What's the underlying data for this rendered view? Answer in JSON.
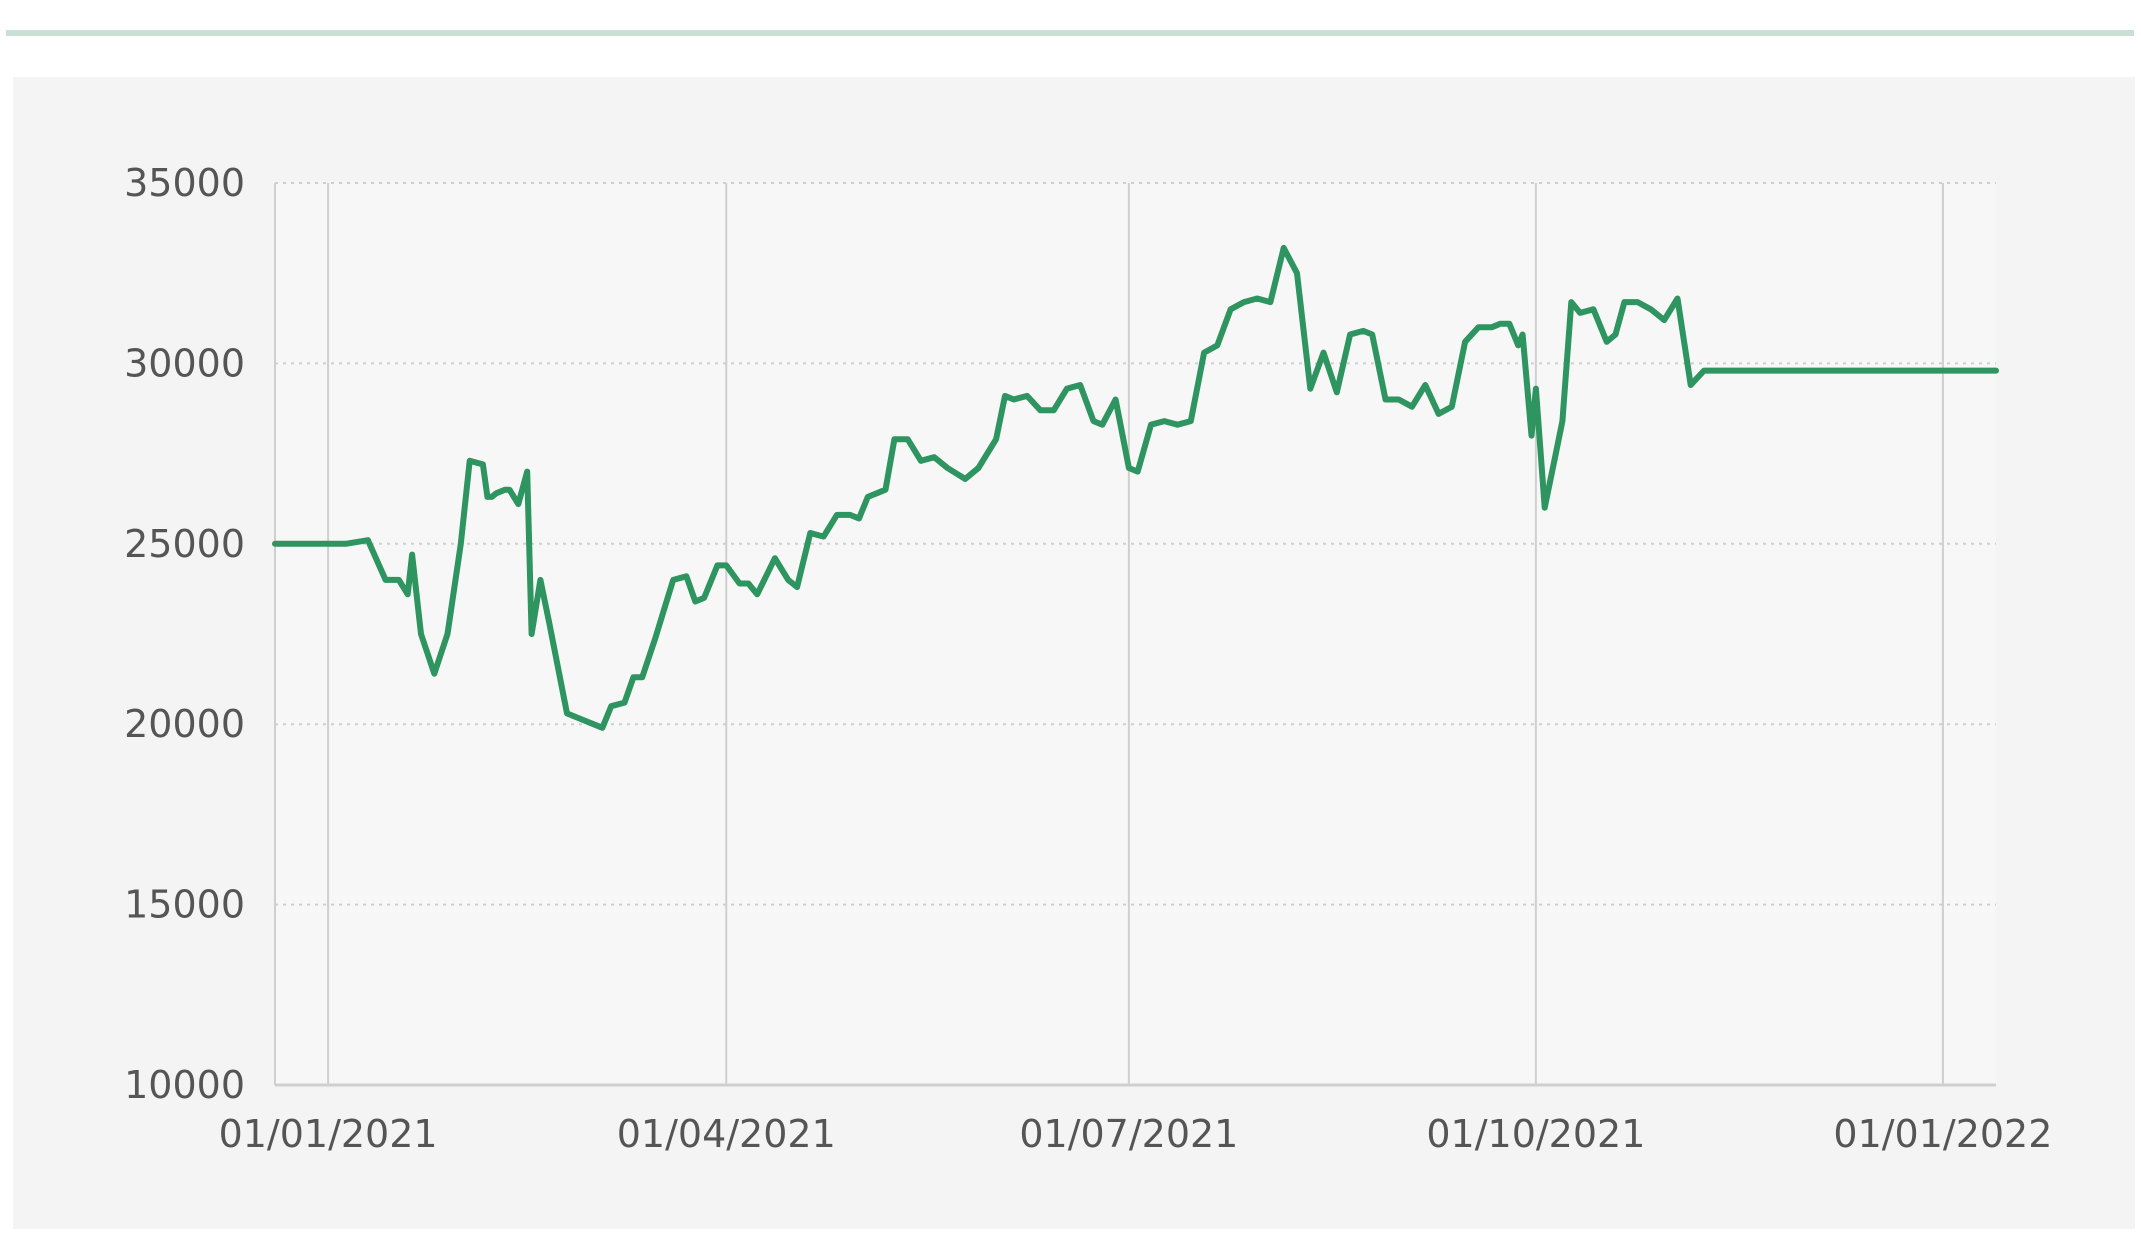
{
  "colors": {
    "line": "#2e9460",
    "grid": "#cfcfcf",
    "accent_rule": "#c9e0d4",
    "panel": "#f4f4f4",
    "plot": "#f7f7f7",
    "text": "#555555"
  },
  "chart_data": {
    "type": "line",
    "title": "",
    "xlabel": "",
    "ylabel": "",
    "x_axis": "date",
    "xlim": [
      "2020-12-20",
      "2022-01-13"
    ],
    "ylim": [
      10000,
      35000
    ],
    "grid": true,
    "legend": "none",
    "y_ticks": [
      10000,
      15000,
      20000,
      25000,
      30000,
      35000
    ],
    "x_ticks": [
      {
        "date": "2021-01-01",
        "label": "01/01/2021"
      },
      {
        "date": "2021-04-01",
        "label": "01/04/2021"
      },
      {
        "date": "2021-07-01",
        "label": "01/07/2021"
      },
      {
        "date": "2021-10-01",
        "label": "01/10/2021"
      },
      {
        "date": "2022-01-01",
        "label": "01/01/2022"
      }
    ],
    "series": [
      {
        "x": [
          "2020-12-20",
          "2021-01-05",
          "2021-01-10",
          "2021-01-14",
          "2021-01-17",
          "2021-01-19",
          "2021-01-20",
          "2021-01-22",
          "2021-01-25",
          "2021-01-28",
          "2021-01-31",
          "2021-02-02",
          "2021-02-05",
          "2021-02-06",
          "2021-02-07",
          "2021-02-08",
          "2021-02-10",
          "2021-02-11",
          "2021-02-13",
          "2021-02-15",
          "2021-02-16",
          "2021-02-18",
          "2021-02-20",
          "2021-02-24",
          "2021-02-26",
          "2021-02-28",
          "2021-03-02",
          "2021-03-04",
          "2021-03-06",
          "2021-03-09",
          "2021-03-11",
          "2021-03-13",
          "2021-03-16",
          "2021-03-18",
          "2021-03-20",
          "2021-03-23",
          "2021-03-25",
          "2021-03-27",
          "2021-03-30",
          "2021-04-01",
          "2021-04-04",
          "2021-04-06",
          "2021-04-08",
          "2021-04-12",
          "2021-04-15",
          "2021-04-17",
          "2021-04-20",
          "2021-04-23",
          "2021-04-26",
          "2021-04-29",
          "2021-05-01",
          "2021-05-03",
          "2021-05-05",
          "2021-05-07",
          "2021-05-09",
          "2021-05-12",
          "2021-05-15",
          "2021-05-18",
          "2021-05-21",
          "2021-05-25",
          "2021-05-28",
          "2021-06-01",
          "2021-06-03",
          "2021-06-05",
          "2021-06-08",
          "2021-06-11",
          "2021-06-14",
          "2021-06-17",
          "2021-06-20",
          "2021-06-23",
          "2021-06-25",
          "2021-06-28",
          "2021-07-01",
          "2021-07-03",
          "2021-07-06",
          "2021-07-09",
          "2021-07-12",
          "2021-07-15",
          "2021-07-18",
          "2021-07-21",
          "2021-07-24",
          "2021-07-27",
          "2021-07-30",
          "2021-08-02",
          "2021-08-05",
          "2021-08-08",
          "2021-08-11",
          "2021-08-14",
          "2021-08-17",
          "2021-08-20",
          "2021-08-23",
          "2021-08-25",
          "2021-08-28",
          "2021-08-31",
          "2021-09-03",
          "2021-09-06",
          "2021-09-09",
          "2021-09-12",
          "2021-09-15",
          "2021-09-18",
          "2021-09-21",
          "2021-09-23",
          "2021-09-25",
          "2021-09-27",
          "2021-09-28",
          "2021-09-30",
          "2021-10-01",
          "2021-10-03",
          "2021-10-05",
          "2021-10-07",
          "2021-10-09",
          "2021-10-11",
          "2021-10-14",
          "2021-10-17",
          "2021-10-19",
          "2021-10-21",
          "2021-10-24",
          "2021-10-27",
          "2021-10-30",
          "2021-11-02",
          "2021-11-05",
          "2021-11-08",
          "2021-11-11",
          "2021-11-14",
          "2021-11-17",
          "2021-11-19",
          "2021-11-21",
          "2021-11-23",
          "2021-11-24",
          "2021-11-25",
          "2021-11-27",
          "2021-11-29",
          "2021-11-30",
          "2021-12-02",
          "2021-12-04",
          "2021-12-06",
          "2021-12-08",
          "2021-12-11",
          "2021-12-14",
          "2021-12-17",
          "2021-12-20",
          "2021-12-23",
          "2021-12-25",
          "2021-12-27",
          "2021-12-29",
          "2022-01-01",
          "2022-01-03",
          "2022-01-05",
          "2022-01-07",
          "2022-01-09",
          "2022-01-13"
        ],
        "values": [
          25000,
          25000,
          25100,
          24000,
          24000,
          23600,
          24700,
          22500,
          21400,
          22500,
          25000,
          27300,
          27200,
          26300,
          26300,
          26400,
          26500,
          26500,
          26100,
          27000,
          22500,
          24000,
          22800,
          20300,
          20200,
          20100,
          20000,
          19900,
          20500,
          20600,
          21300,
          21300,
          22400,
          23200,
          24000,
          24100,
          23400,
          23500,
          24400,
          24400,
          23900,
          23900,
          23600,
          24600,
          24000,
          23800,
          25300,
          25200,
          25800,
          25800,
          25700,
          26300,
          26400,
          26500,
          27900,
          27900,
          27300,
          27400,
          27100,
          26800,
          27100,
          27900,
          29100,
          29000,
          29100,
          28700,
          28700,
          29300,
          29400,
          28400,
          28300,
          29000,
          27100,
          27000,
          28300,
          28400,
          28300,
          28400,
          30300,
          30500,
          31500,
          31700,
          31800,
          31700,
          33200,
          32500,
          29300,
          30300,
          29200,
          30800,
          30900,
          30800,
          29000,
          29000,
          28800,
          29400,
          28600,
          28800,
          30600,
          31000,
          31000,
          31100,
          31100,
          30500,
          30800,
          28000,
          29300,
          26000,
          27200,
          28400,
          31700,
          31400,
          31500,
          30600,
          30800,
          31700,
          31700,
          31500,
          31200,
          31800,
          29400,
          29800,
          29800,
          29800,
          29800,
          29800,
          29800,
          29800,
          29800,
          29800,
          29800,
          29800,
          29800,
          29800,
          29800,
          29800,
          29800,
          29800,
          29800,
          29800,
          29800,
          29800,
          29800,
          29800,
          29800,
          29800,
          29800,
          29800,
          29800,
          29800,
          29800
        ]
      }
    ]
  }
}
